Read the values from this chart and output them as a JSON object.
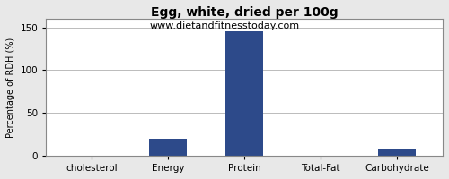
{
  "title": "Egg, white, dried per 100g",
  "subtitle": "www.dietandfitnesstoday.com",
  "categories": [
    "cholesterol",
    "Energy",
    "Protein",
    "Total-Fat",
    "Carbohydrate"
  ],
  "values": [
    0,
    20,
    145,
    0,
    8
  ],
  "bar_color": "#2d4a8a",
  "ylabel": "Percentage of RDH (%)",
  "ylim": [
    0,
    160
  ],
  "yticks": [
    0,
    50,
    100,
    150
  ],
  "background_color": "#e8e8e8",
  "plot_bg_color": "#ffffff",
  "title_fontsize": 10,
  "subtitle_fontsize": 8,
  "ylabel_fontsize": 7,
  "tick_fontsize": 7.5
}
